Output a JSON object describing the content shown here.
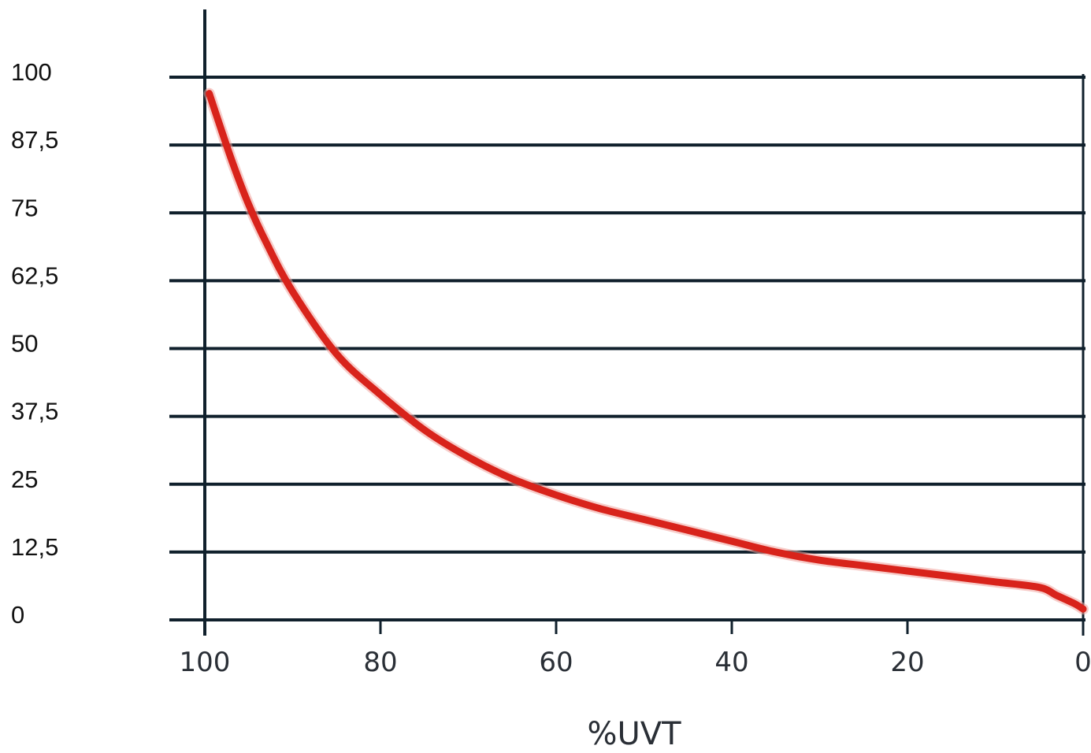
{
  "chart_data": {
    "type": "line",
    "xlabel": "%UVT",
    "ylabel": "",
    "xlim": [
      100,
      0
    ],
    "ylim": [
      0,
      100
    ],
    "x_reversed": true,
    "grid": "horizontal",
    "x_ticks": [
      100,
      80,
      60,
      40,
      20,
      0
    ],
    "x_tick_labels": [
      "100",
      "80",
      "60",
      "40",
      "20",
      "0"
    ],
    "y_ticks": [
      0,
      12.5,
      25,
      37.5,
      50,
      62.5,
      75,
      87.5,
      100
    ],
    "y_tick_labels": [
      "0",
      "12,5",
      "25",
      "37,5",
      "50",
      "62,5",
      "75",
      "87,5",
      "100"
    ],
    "series": [
      {
        "color": "#d8231b",
        "x": [
          99.5,
          97,
          95,
          93,
          90,
          85,
          80,
          75,
          70,
          65,
          60,
          55,
          50,
          45,
          40,
          35,
          30,
          25,
          20,
          15,
          10,
          5,
          3,
          1,
          0
        ],
        "y": [
          97,
          85,
          76.5,
          69.5,
          60.5,
          49,
          41.5,
          35,
          30,
          26,
          23,
          20.5,
          18.5,
          16.5,
          14.5,
          12.5,
          11,
          10,
          9,
          8,
          7,
          6,
          4.5,
          3,
          2
        ]
      }
    ],
    "colors": {
      "line": "#d8231b",
      "grid": "#10202c",
      "axis": "#10202c"
    }
  }
}
